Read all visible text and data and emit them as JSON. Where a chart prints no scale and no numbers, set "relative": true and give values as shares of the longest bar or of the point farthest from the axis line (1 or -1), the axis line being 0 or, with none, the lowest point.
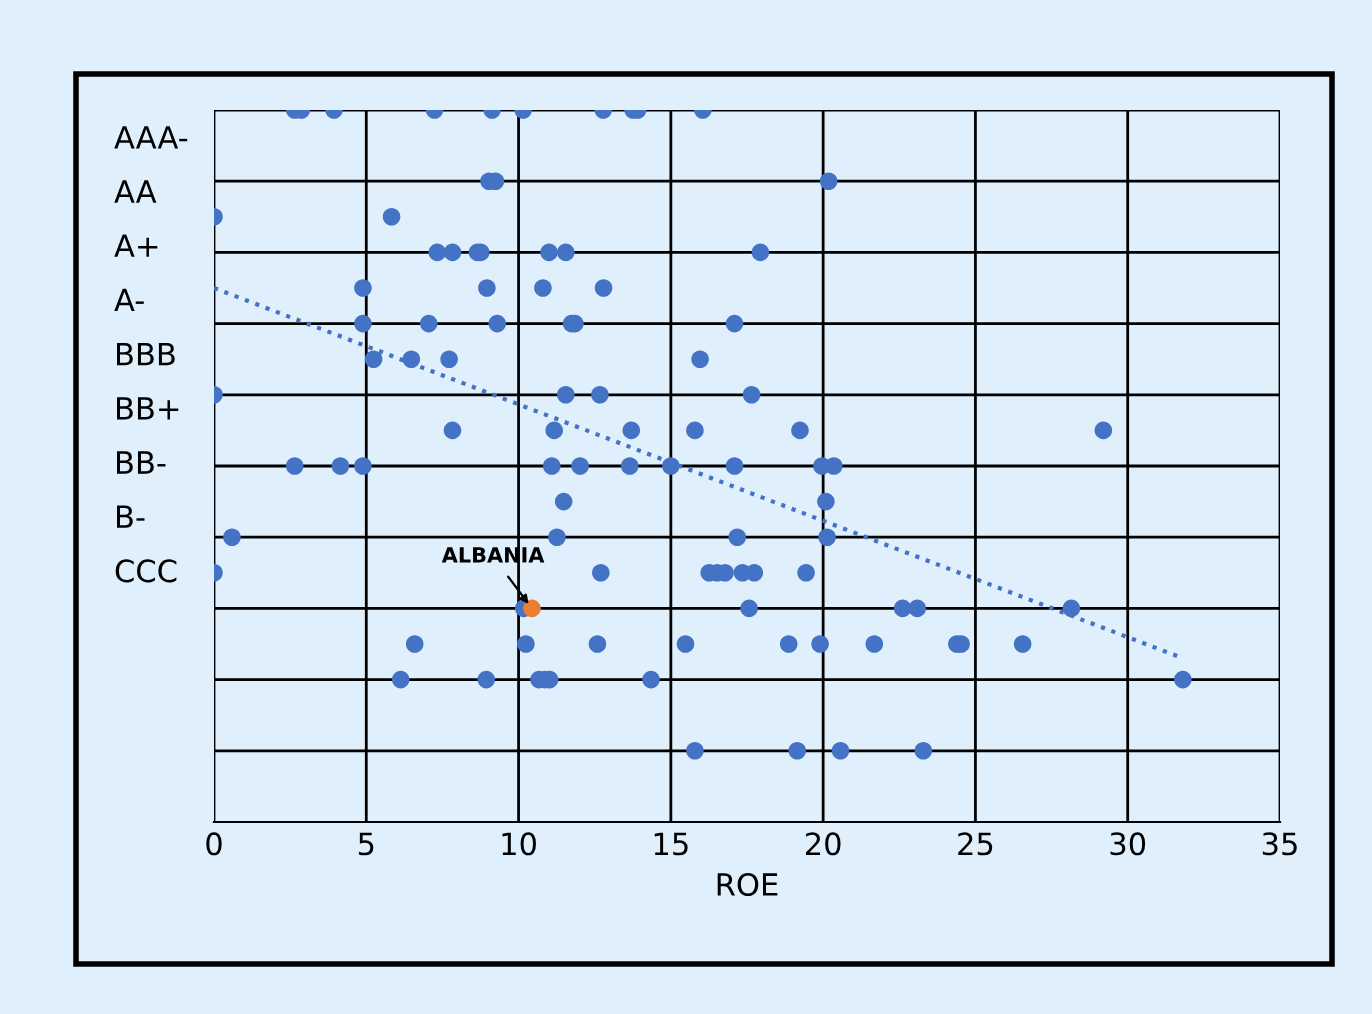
{
  "chart_data": {
    "type": "scatter",
    "xlabel": "ROE",
    "xlim": [
      0,
      35
    ],
    "xticks": [
      0,
      5,
      10,
      15,
      20,
      25,
      30,
      35
    ],
    "relative": true,
    "grid": true,
    "marker": "circle",
    "series": [
      {
        "color": "#4472c4",
        "x": [
          2.65,
          2.87,
          3.94,
          7.24,
          9.13,
          10.15,
          12.78,
          13.76,
          13.91,
          16.05,
          9.03,
          9.24,
          20.18,
          0,
          5.83,
          7.33,
          7.83,
          8.65,
          8.76,
          11.0,
          11.55,
          17.94,
          4.89,
          8.96,
          10.8,
          12.79,
          4.89,
          7.05,
          9.3,
          11.74,
          11.85,
          17.09,
          5.24,
          6.48,
          7.72,
          15.96,
          0,
          11.55,
          12.67,
          17.65,
          7.83,
          11.17,
          13.7,
          15.79,
          19.24,
          29.2,
          2.65,
          4.15,
          4.89,
          11.09,
          12.02,
          13.65,
          15.0,
          17.09,
          19.96,
          20.35,
          11.48,
          20.09,
          0.59,
          11.26,
          17.18,
          20.13,
          0,
          12.7,
          16.26,
          16.52,
          16.78,
          17.35,
          17.74,
          19.44,
          10.17,
          17.57,
          22.61,
          23.09,
          28.15,
          6.59,
          10.24,
          12.59,
          15.48,
          18.87,
          19.9,
          21.68,
          24.39,
          24.53,
          26.55,
          6.13,
          8.94,
          10.67,
          10.87,
          11.02,
          14.35,
          31.81,
          15.79,
          19.15,
          20.57,
          23.29
        ],
        "values": [
          1,
          1,
          1,
          1,
          1,
          1,
          1,
          1,
          1,
          1,
          0.9,
          0.9,
          0.9,
          0.85,
          0.85,
          0.8,
          0.8,
          0.8,
          0.8,
          0.8,
          0.8,
          0.8,
          0.75,
          0.75,
          0.75,
          0.75,
          0.7,
          0.7,
          0.7,
          0.7,
          0.7,
          0.7,
          0.65,
          0.65,
          0.65,
          0.65,
          0.6,
          0.6,
          0.6,
          0.6,
          0.55,
          0.55,
          0.55,
          0.55,
          0.55,
          0.55,
          0.5,
          0.5,
          0.5,
          0.5,
          0.5,
          0.5,
          0.5,
          0.5,
          0.5,
          0.5,
          0.45,
          0.45,
          0.4,
          0.4,
          0.4,
          0.4,
          0.35,
          0.35,
          0.35,
          0.35,
          0.35,
          0.35,
          0.35,
          0.35,
          0.3,
          0.3,
          0.3,
          0.3,
          0.3,
          0.25,
          0.25,
          0.25,
          0.25,
          0.25,
          0.25,
          0.25,
          0.25,
          0.25,
          0.25,
          0.2,
          0.2,
          0.2,
          0.2,
          0.2,
          0.2,
          0.2,
          0.1,
          0.1,
          0.1,
          0.1
        ]
      },
      {
        "color": "#ed7d31",
        "x": [
          10.44
        ],
        "values": [
          0.3
        ]
      },
      {
        "type": "line",
        "color": "#4472c4",
        "line_style": "dotted",
        "marker": "none",
        "x": [
          0,
          31.81
        ],
        "values": [
          0.75,
          0.23
        ]
      }
    ],
    "annotations": [
      "AAA-",
      "AA",
      "A+",
      "A-",
      "BBB",
      "BB+",
      "BB-",
      "B-",
      "CCC",
      {
        "text": "ALBANIA",
        "x": 10.44,
        "y": 0.3
      }
    ]
  }
}
